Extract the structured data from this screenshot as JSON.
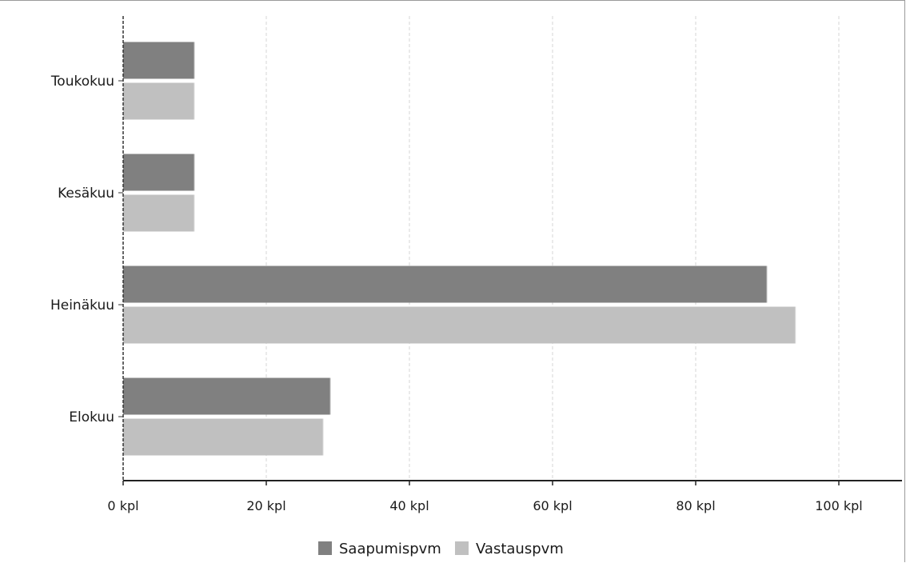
{
  "chart_data": {
    "type": "bar",
    "orientation": "horizontal",
    "categories": [
      "Toukokuu",
      "Kesäkuu",
      "Heinäkuu",
      "Elokuu"
    ],
    "series": [
      {
        "name": "Saapumispvm",
        "color": "#808080",
        "values": [
          10,
          10,
          90,
          29
        ]
      },
      {
        "name": "Vastauspvm",
        "color": "#c0c0c0",
        "values": [
          10,
          10,
          94,
          28
        ]
      }
    ],
    "xlim": [
      0,
      110
    ],
    "xticks": [
      0,
      20,
      40,
      60,
      80,
      100
    ],
    "xtick_labels": [
      "0 kpl",
      "20 kpl",
      "40 kpl",
      "60 kpl",
      "80 kpl",
      "100 kpl"
    ],
    "grid": "vertical dashed",
    "legend": "bottom-center"
  }
}
